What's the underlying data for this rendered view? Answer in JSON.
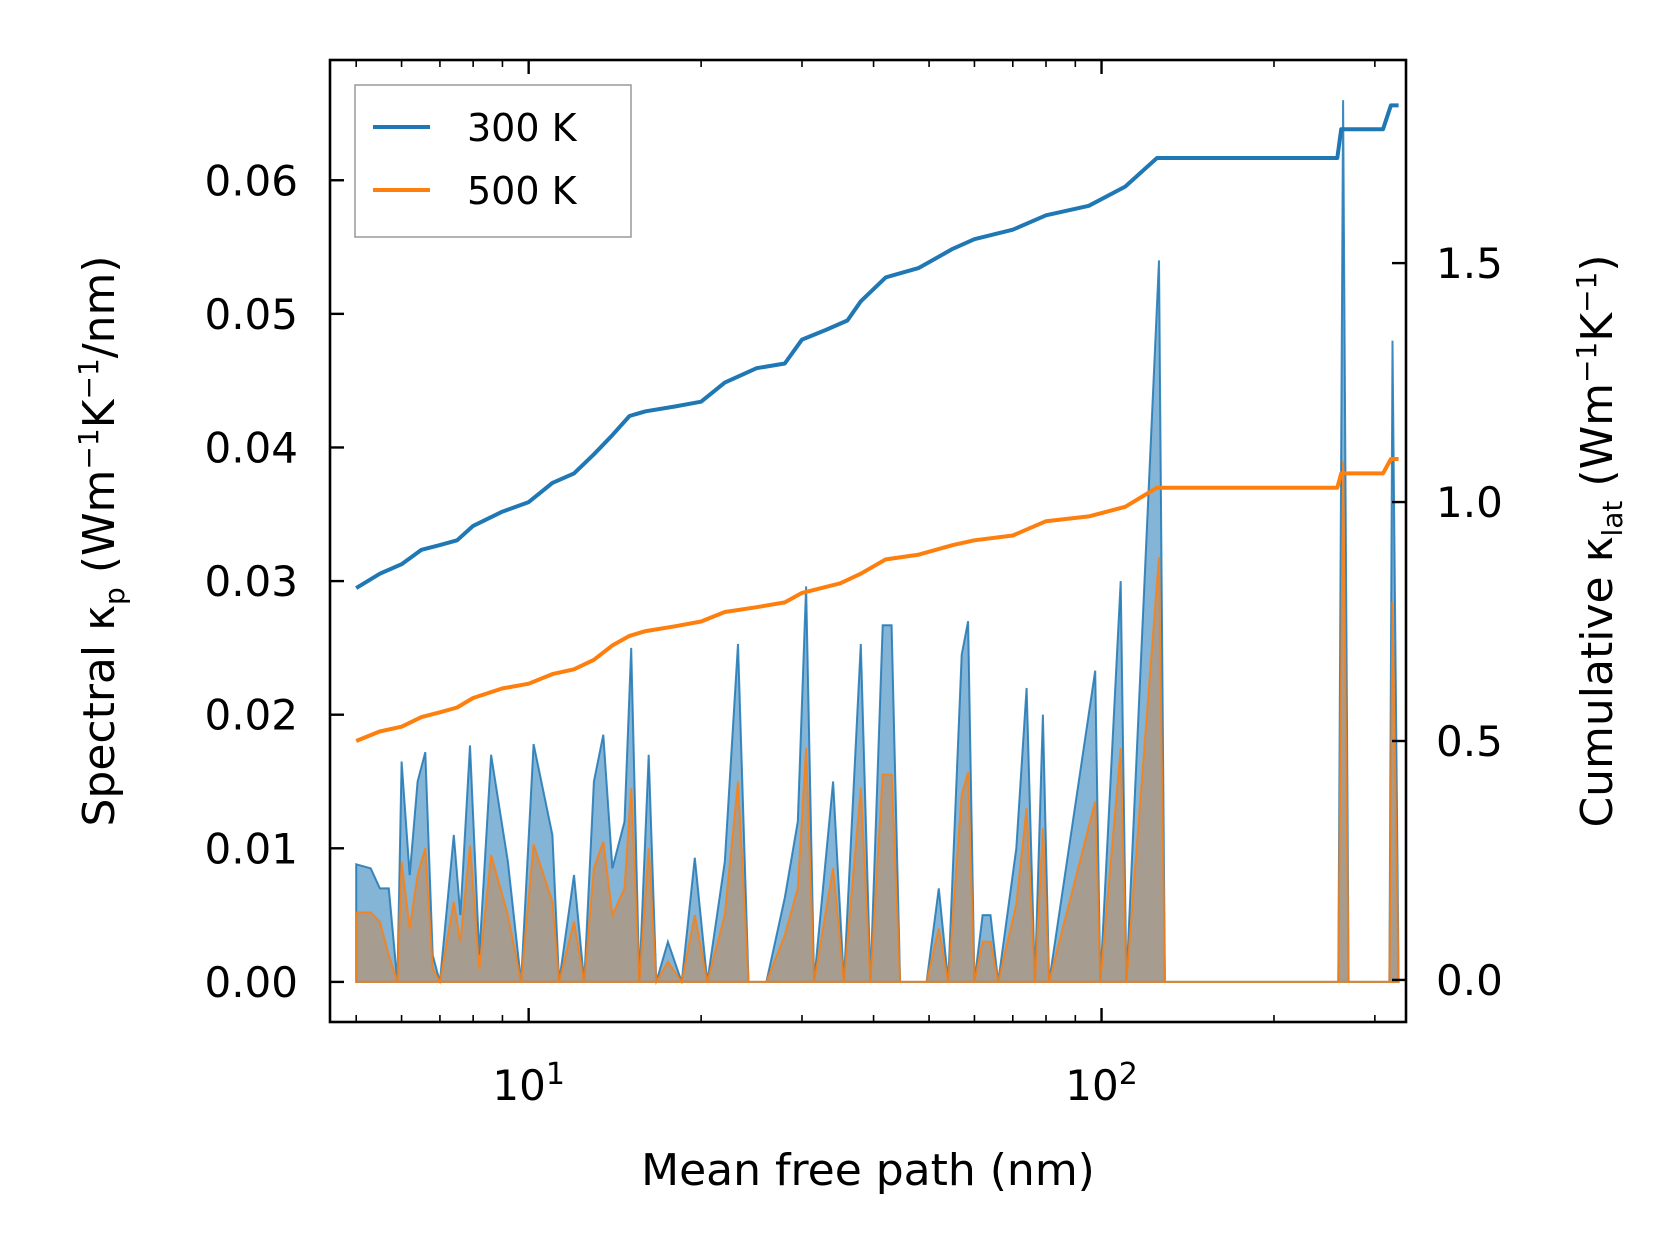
{
  "chart_data": {
    "type": "line",
    "x_scale": "log",
    "xlim": [
      4.5,
      340
    ],
    "xlabel": "Mean free path (nm)",
    "x_ticks": [
      {
        "value": 10,
        "base": "10",
        "exp": "1"
      },
      {
        "value": 100,
        "base": "10",
        "exp": "2"
      }
    ],
    "left_axis": {
      "label_main": "Spectral κ",
      "label_sub": "p",
      "label_units": " (Wm",
      "label_sup1": "−1",
      "label_k": "K",
      "label_sup2": "−1",
      "label_end": "/nm)",
      "ylim": [
        -0.003,
        0.069
      ],
      "ticks": [
        {
          "value": 0.0,
          "label": "0.00"
        },
        {
          "value": 0.01,
          "label": "0.01"
        },
        {
          "value": 0.02,
          "label": "0.02"
        },
        {
          "value": 0.03,
          "label": "0.03"
        },
        {
          "value": 0.04,
          "label": "0.04"
        },
        {
          "value": 0.05,
          "label": "0.05"
        },
        {
          "value": 0.06,
          "label": "0.06"
        }
      ]
    },
    "right_axis": {
      "label_main": "Cumulative κ",
      "label_sub": "lat",
      "label_units": " (Wm",
      "label_sup1": "−1",
      "label_k": "K",
      "label_sup2": "−1",
      "label_end": ")",
      "ylim": [
        -0.088,
        1.925
      ],
      "ticks": [
        {
          "value": 0.0,
          "label": "0.0"
        },
        {
          "value": 0.5,
          "label": "0.5"
        },
        {
          "value": 1.0,
          "label": "1.0"
        },
        {
          "value": 1.5,
          "label": "1.5"
        }
      ]
    },
    "legend": {
      "position": "top-left",
      "entries": [
        "300 K",
        "500 K"
      ]
    },
    "series": [
      {
        "name": "300 K",
        "color": "#1f77b4",
        "cumulative": [
          [
            5.0,
            0.82
          ],
          [
            5.5,
            0.85
          ],
          [
            6.0,
            0.87
          ],
          [
            6.5,
            0.9
          ],
          [
            7.0,
            0.91
          ],
          [
            7.5,
            0.92
          ],
          [
            8.0,
            0.95
          ],
          [
            9.0,
            0.98
          ],
          [
            10.0,
            1.0
          ],
          [
            11.0,
            1.04
          ],
          [
            12.0,
            1.06
          ],
          [
            13.0,
            1.1
          ],
          [
            14.0,
            1.14
          ],
          [
            15.0,
            1.18
          ],
          [
            16.0,
            1.19
          ],
          [
            18.0,
            1.2
          ],
          [
            20.0,
            1.21
          ],
          [
            22.0,
            1.25
          ],
          [
            25.0,
            1.28
          ],
          [
            28.0,
            1.29
          ],
          [
            30.0,
            1.34
          ],
          [
            33.0,
            1.36
          ],
          [
            36.0,
            1.38
          ],
          [
            38.0,
            1.42
          ],
          [
            42.0,
            1.47
          ],
          [
            48.0,
            1.49
          ],
          [
            55.0,
            1.53
          ],
          [
            60.0,
            1.55
          ],
          [
            70.0,
            1.57
          ],
          [
            80.0,
            1.6
          ],
          [
            95.0,
            1.62
          ],
          [
            110.0,
            1.66
          ],
          [
            125.0,
            1.72
          ],
          [
            200.0,
            1.72
          ],
          [
            258.0,
            1.72
          ],
          [
            262.0,
            1.78
          ],
          [
            310.0,
            1.78
          ],
          [
            320.0,
            1.83
          ],
          [
            330.0,
            1.83
          ]
        ],
        "spectral": [
          [
            5.0,
            0.0088
          ],
          [
            5.3,
            0.0085
          ],
          [
            5.5,
            0.007
          ],
          [
            5.7,
            0.007
          ],
          [
            5.9,
            0.0
          ],
          [
            6.0,
            0.0165
          ],
          [
            6.2,
            0.008
          ],
          [
            6.4,
            0.015
          ],
          [
            6.6,
            0.0172
          ],
          [
            6.8,
            0.002
          ],
          [
            7.0,
            0.0
          ],
          [
            7.4,
            0.011
          ],
          [
            7.6,
            0.005
          ],
          [
            7.9,
            0.0177
          ],
          [
            8.2,
            0.002
          ],
          [
            8.6,
            0.017
          ],
          [
            9.2,
            0.009
          ],
          [
            9.7,
            0.0
          ],
          [
            10.2,
            0.0178
          ],
          [
            11.0,
            0.011
          ],
          [
            11.3,
            0.0
          ],
          [
            12.0,
            0.008
          ],
          [
            12.5,
            0.0
          ],
          [
            13.0,
            0.015
          ],
          [
            13.5,
            0.0185
          ],
          [
            14.0,
            0.0085
          ],
          [
            14.7,
            0.012
          ],
          [
            15.1,
            0.025
          ],
          [
            15.6,
            0.0
          ],
          [
            16.2,
            0.017
          ],
          [
            16.7,
            0.0
          ],
          [
            17.5,
            0.003
          ],
          [
            18.5,
            0.0
          ],
          [
            19.5,
            0.0093
          ],
          [
            20.5,
            0.0
          ],
          [
            22.0,
            0.009
          ],
          [
            23.2,
            0.0253
          ],
          [
            24.2,
            0.0
          ],
          [
            26.0,
            0.0
          ],
          [
            28.0,
            0.0063
          ],
          [
            29.5,
            0.012
          ],
          [
            30.5,
            0.0296
          ],
          [
            31.5,
            0.0
          ],
          [
            34.0,
            0.015
          ],
          [
            35.5,
            0.0
          ],
          [
            38.0,
            0.0253
          ],
          [
            39.5,
            0.0
          ],
          [
            41.5,
            0.0267
          ],
          [
            43.0,
            0.0267
          ],
          [
            44.5,
            0.0
          ],
          [
            47.0,
            0.0
          ],
          [
            49.5,
            0.0
          ],
          [
            52.0,
            0.007
          ],
          [
            54.0,
            0.0
          ],
          [
            57.0,
            0.0245
          ],
          [
            58.5,
            0.027
          ],
          [
            60.0,
            0.0
          ],
          [
            62.0,
            0.005
          ],
          [
            64.0,
            0.005
          ],
          [
            66.0,
            0.0
          ],
          [
            71.0,
            0.01
          ],
          [
            74.0,
            0.022
          ],
          [
            76.5,
            0.0
          ],
          [
            79.0,
            0.02
          ],
          [
            81.0,
            0.0
          ],
          [
            97.5,
            0.0233
          ],
          [
            99.5,
            0.0
          ],
          [
            108.0,
            0.03
          ],
          [
            110.5,
            0.0
          ],
          [
            126.0,
            0.054
          ],
          [
            129.0,
            0.0
          ],
          [
            259.0,
            0.0
          ],
          [
            264.0,
            0.066
          ],
          [
            270.0,
            0.0
          ],
          [
            318.0,
            0.0
          ],
          [
            322.0,
            0.048
          ],
          [
            330.0,
            0.0
          ]
        ]
      },
      {
        "name": "500 K",
        "color": "#ff7f0e",
        "cumulative": [
          [
            5.0,
            0.5
          ],
          [
            5.5,
            0.52
          ],
          [
            6.0,
            0.53
          ],
          [
            6.5,
            0.55
          ],
          [
            7.0,
            0.56
          ],
          [
            7.5,
            0.57
          ],
          [
            8.0,
            0.59
          ],
          [
            9.0,
            0.61
          ],
          [
            10.0,
            0.62
          ],
          [
            11.0,
            0.64
          ],
          [
            12.0,
            0.65
          ],
          [
            13.0,
            0.67
          ],
          [
            14.0,
            0.7
          ],
          [
            15.0,
            0.72
          ],
          [
            16.0,
            0.73
          ],
          [
            18.0,
            0.74
          ],
          [
            20.0,
            0.75
          ],
          [
            22.0,
            0.77
          ],
          [
            25.0,
            0.78
          ],
          [
            28.0,
            0.79
          ],
          [
            30.0,
            0.81
          ],
          [
            35.0,
            0.83
          ],
          [
            38.0,
            0.85
          ],
          [
            42.0,
            0.88
          ],
          [
            48.0,
            0.89
          ],
          [
            55.0,
            0.91
          ],
          [
            60.0,
            0.92
          ],
          [
            70.0,
            0.93
          ],
          [
            80.0,
            0.96
          ],
          [
            95.0,
            0.97
          ],
          [
            110.0,
            0.99
          ],
          [
            125.0,
            1.03
          ],
          [
            200.0,
            1.03
          ],
          [
            258.0,
            1.03
          ],
          [
            262.0,
            1.06
          ],
          [
            310.0,
            1.06
          ],
          [
            320.0,
            1.09
          ],
          [
            330.0,
            1.09
          ]
        ],
        "spectral": [
          [
            5.0,
            0.0052
          ],
          [
            5.3,
            0.0052
          ],
          [
            5.5,
            0.0045
          ],
          [
            5.7,
            0.002
          ],
          [
            5.9,
            0.0
          ],
          [
            6.0,
            0.009
          ],
          [
            6.2,
            0.004
          ],
          [
            6.4,
            0.008
          ],
          [
            6.6,
            0.01
          ],
          [
            6.8,
            0.001
          ],
          [
            7.0,
            0.0
          ],
          [
            7.4,
            0.006
          ],
          [
            7.6,
            0.003
          ],
          [
            7.9,
            0.0102
          ],
          [
            8.2,
            0.001
          ],
          [
            8.6,
            0.0095
          ],
          [
            9.2,
            0.005
          ],
          [
            9.7,
            0.0
          ],
          [
            10.2,
            0.0103
          ],
          [
            11.0,
            0.006
          ],
          [
            11.3,
            0.0
          ],
          [
            12.0,
            0.0045
          ],
          [
            12.5,
            0.0
          ],
          [
            13.0,
            0.0085
          ],
          [
            13.5,
            0.0105
          ],
          [
            14.0,
            0.005
          ],
          [
            14.7,
            0.007
          ],
          [
            15.1,
            0.0145
          ],
          [
            15.6,
            0.0
          ],
          [
            16.2,
            0.01
          ],
          [
            16.7,
            0.0
          ],
          [
            17.5,
            0.0015
          ],
          [
            18.5,
            0.0
          ],
          [
            19.5,
            0.005
          ],
          [
            20.5,
            0.0
          ],
          [
            22.0,
            0.005
          ],
          [
            23.2,
            0.015
          ],
          [
            24.2,
            0.0
          ],
          [
            26.0,
            0.0
          ],
          [
            28.0,
            0.0035
          ],
          [
            29.5,
            0.007
          ],
          [
            30.5,
            0.0175
          ],
          [
            31.5,
            0.0
          ],
          [
            34.0,
            0.0085
          ],
          [
            35.5,
            0.0
          ],
          [
            38.0,
            0.0145
          ],
          [
            39.5,
            0.0
          ],
          [
            41.5,
            0.0155
          ],
          [
            43.0,
            0.0155
          ],
          [
            44.5,
            0.0
          ],
          [
            47.0,
            0.0
          ],
          [
            49.5,
            0.0
          ],
          [
            52.0,
            0.004
          ],
          [
            54.0,
            0.0
          ],
          [
            57.0,
            0.014
          ],
          [
            58.5,
            0.0157
          ],
          [
            60.0,
            0.0
          ],
          [
            62.0,
            0.003
          ],
          [
            64.0,
            0.003
          ],
          [
            66.0,
            0.0
          ],
          [
            71.0,
            0.0058
          ],
          [
            74.0,
            0.013
          ],
          [
            76.5,
            0.0
          ],
          [
            79.0,
            0.0115
          ],
          [
            81.0,
            0.0
          ],
          [
            97.5,
            0.0135
          ],
          [
            99.5,
            0.0
          ],
          [
            108.0,
            0.0175
          ],
          [
            110.5,
            0.0
          ],
          [
            126.0,
            0.0318
          ],
          [
            129.0,
            0.0
          ],
          [
            259.0,
            0.0
          ],
          [
            264.0,
            0.039
          ],
          [
            270.0,
            0.0
          ],
          [
            318.0,
            0.0
          ],
          [
            322.0,
            0.0285
          ],
          [
            330.0,
            0.0
          ]
        ]
      }
    ]
  }
}
